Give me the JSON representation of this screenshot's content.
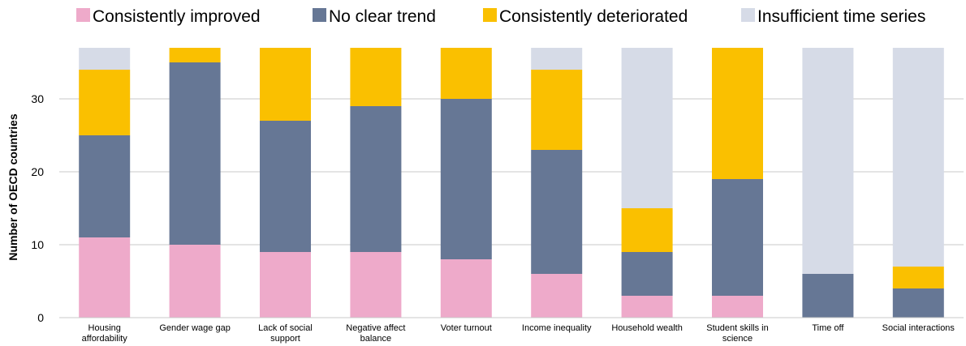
{
  "chart_data": {
    "type": "bar",
    "stacked": true,
    "ylabel": "Number of OECD countries",
    "ylim": [
      0,
      37
    ],
    "yticks": [
      0,
      10,
      20,
      30
    ],
    "grid": true,
    "legend_position": "top",
    "categories": [
      [
        "Housing",
        "affordability"
      ],
      [
        "Gender wage gap"
      ],
      [
        "Lack of social",
        "support"
      ],
      [
        "Negative affect",
        "balance"
      ],
      [
        "Voter turnout"
      ],
      [
        "Income inequality"
      ],
      [
        "Household wealth"
      ],
      [
        "Student skills in",
        "science"
      ],
      [
        "Time off"
      ],
      [
        "Social interactions"
      ]
    ],
    "series": [
      {
        "name": "Consistently improved",
        "color": "#eeaaca",
        "values": [
          11,
          10,
          9,
          9,
          8,
          6,
          3,
          3,
          0,
          0
        ]
      },
      {
        "name": "No clear trend",
        "color": "#667795",
        "values": [
          14,
          25,
          18,
          20,
          22,
          17,
          6,
          16,
          6,
          4
        ]
      },
      {
        "name": "Consistently deteriorated",
        "color": "#fac000",
        "values": [
          9,
          2,
          10,
          8,
          7,
          11,
          6,
          18,
          0,
          3
        ]
      },
      {
        "name": "Insufficient time series",
        "color": "#d6dbe7",
        "values": [
          3,
          0,
          0,
          0,
          0,
          3,
          22,
          0,
          31,
          30
        ]
      }
    ]
  }
}
